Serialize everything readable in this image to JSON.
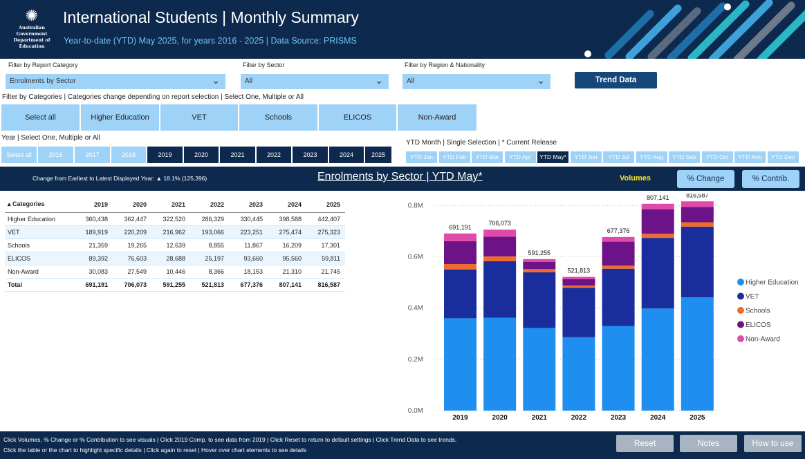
{
  "header": {
    "title": "International Students | Monthly Summary",
    "subtitle": "Year-to-date (YTD) May 2025, for years 2016 - 2025 | Data Source: PRISMS",
    "gov_line1": "Australian Government",
    "gov_line2": "Department of Education"
  },
  "filters": {
    "report_label": "Filter by Report Category",
    "report_value": "Enrolments by Sector",
    "sector_label": "Filter by Sector",
    "sector_value": "All",
    "region_label": "Filter by Region & Nationality",
    "region_value": "All",
    "trend_button": "Trend Data",
    "categories_label": "Filter by Categories | Categories change depending on report selection | Select One, Multiple or All",
    "categories": [
      "Select all",
      "Higher Education",
      "VET",
      "Schools",
      "ELICOS",
      "Non-Award"
    ],
    "year_label": "Year | Select One, Multiple or All",
    "years": [
      {
        "label": "Select all",
        "selected": false
      },
      {
        "label": "2016",
        "selected": false
      },
      {
        "label": "2017",
        "selected": false
      },
      {
        "label": "2018",
        "selected": false
      },
      {
        "label": "2019",
        "selected": true
      },
      {
        "label": "2020",
        "selected": true
      },
      {
        "label": "2021",
        "selected": true
      },
      {
        "label": "2022",
        "selected": true
      },
      {
        "label": "2023",
        "selected": true
      },
      {
        "label": "2024",
        "selected": true
      },
      {
        "label": "2025",
        "selected": true
      }
    ],
    "ytd_label": "YTD Month | Single Selection | * Current Release",
    "ytd_months": [
      {
        "label": "YTD Jan",
        "selected": false
      },
      {
        "label": "YTD Feb",
        "selected": false
      },
      {
        "label": "YTD Mar",
        "selected": false
      },
      {
        "label": "YTD Apr",
        "selected": false
      },
      {
        "label": "YTD May*",
        "selected": true
      },
      {
        "label": "YTD Jun",
        "selected": false
      },
      {
        "label": "YTD Jul",
        "selected": false
      },
      {
        "label": "YTD Aug",
        "selected": false
      },
      {
        "label": "YTD Sep",
        "selected": false
      },
      {
        "label": "YTD Oct",
        "selected": false
      },
      {
        "label": "YTD Nov",
        "selected": false
      },
      {
        "label": "YTD Dec",
        "selected": false
      }
    ]
  },
  "band": {
    "change_text": "Change from Earliest to Latest Displayed Year: ▲ 18.1% (125,396)",
    "chart_title": "Enrolments by Sector | YTD May*",
    "volumes": "Volumes",
    "pct_change": "% Change",
    "pct_contrib": "% Contrib."
  },
  "table": {
    "headers": [
      "Categories",
      "2019",
      "2020",
      "2021",
      "2022",
      "2023",
      "2024",
      "2025"
    ],
    "rows": [
      [
        "Higher Education",
        "360,438",
        "362,447",
        "322,520",
        "286,329",
        "330,445",
        "398,588",
        "442,407"
      ],
      [
        "VET",
        "189,919",
        "220,209",
        "216,962",
        "193,066",
        "223,251",
        "275,474",
        "275,323"
      ],
      [
        "Schools",
        "21,359",
        "19,265",
        "12,639",
        "8,855",
        "11,867",
        "16,209",
        "17,301"
      ],
      [
        "ELICOS",
        "89,392",
        "76,603",
        "28,688",
        "25,197",
        "93,660",
        "95,560",
        "59,811"
      ],
      [
        "Non-Award",
        "30,083",
        "27,549",
        "10,446",
        "8,366",
        "18,153",
        "21,310",
        "21,745"
      ]
    ],
    "total": [
      "Total",
      "691,191",
      "706,073",
      "591,255",
      "521,813",
      "677,376",
      "807,141",
      "816,587"
    ]
  },
  "chart_data": {
    "type": "bar",
    "stacked": true,
    "title": "Enrolments by Sector | YTD May*",
    "categories": [
      "2019",
      "2020",
      "2021",
      "2022",
      "2023",
      "2024",
      "2025"
    ],
    "series": [
      {
        "name": "Higher Education",
        "color": "#1e8ff0",
        "values": [
          360438,
          362447,
          322520,
          286329,
          330445,
          398588,
          442407
        ]
      },
      {
        "name": "VET",
        "color": "#1a2d9c",
        "values": [
          189919,
          220209,
          216962,
          193066,
          223251,
          275474,
          275323
        ]
      },
      {
        "name": "Schools",
        "color": "#ee6c2f",
        "values": [
          21359,
          19265,
          12639,
          8855,
          11867,
          16209,
          17301
        ]
      },
      {
        "name": "ELICOS",
        "color": "#6c1487",
        "values": [
          89392,
          76603,
          28688,
          25197,
          93660,
          95560,
          59811
        ]
      },
      {
        "name": "Non-Award",
        "color": "#e04aa8",
        "values": [
          30083,
          27549,
          10446,
          8366,
          18153,
          21310,
          21745
        ]
      }
    ],
    "totals": [
      691191,
      706073,
      591255,
      521813,
      677376,
      807141,
      816587
    ],
    "total_labels": [
      "691,191",
      "706,073",
      "591,255",
      "521,813",
      "677,376",
      "807,141",
      "816,587"
    ],
    "yticks": [
      0,
      200000,
      400000,
      600000,
      800000
    ],
    "ytick_labels": [
      "0.0M",
      "0.2M",
      "0.4M",
      "0.6M",
      "0.8M"
    ],
    "ylim": [
      0,
      820000
    ],
    "legend_position": "right"
  },
  "footer": {
    "line1": "Click Volumes, % Change or % Contribution to see visuals | Click 2019 Comp. to see data from 2019 | Click Reset to return to default settings | Click Trend Data to see trends.",
    "line2": "Click the table or the chart to highlight specific details  |  Click again to reset  |  Hover over chart elements to see details",
    "reset": "Reset",
    "notes": "Notes",
    "how_to_use": "How to use"
  }
}
